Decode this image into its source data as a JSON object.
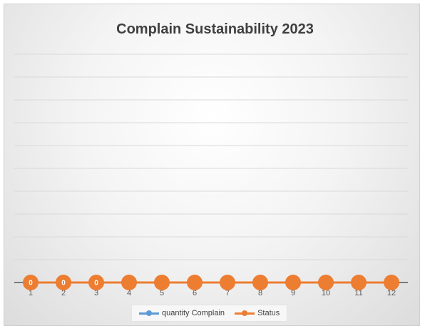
{
  "chart_data": {
    "type": "line",
    "title": "Complain Sustainability 2023",
    "categories": [
      "1",
      "2",
      "3",
      "4",
      "5",
      "6",
      "7",
      "8",
      "9",
      "10",
      "11",
      "12"
    ],
    "series": [
      {
        "name": "quantity Complain",
        "values": [
          0,
          0,
          0,
          0,
          0,
          0,
          0,
          0,
          0,
          0,
          0,
          0
        ],
        "color": "#5b9bd5"
      },
      {
        "name": "Status",
        "values": [
          0,
          0,
          0,
          0,
          0,
          0,
          0,
          0,
          0,
          0,
          0,
          0
        ],
        "color": "#ed7d31"
      }
    ],
    "data_labels": [
      "0",
      "0",
      "0"
    ],
    "grid": true,
    "legend_position": "bottom"
  }
}
